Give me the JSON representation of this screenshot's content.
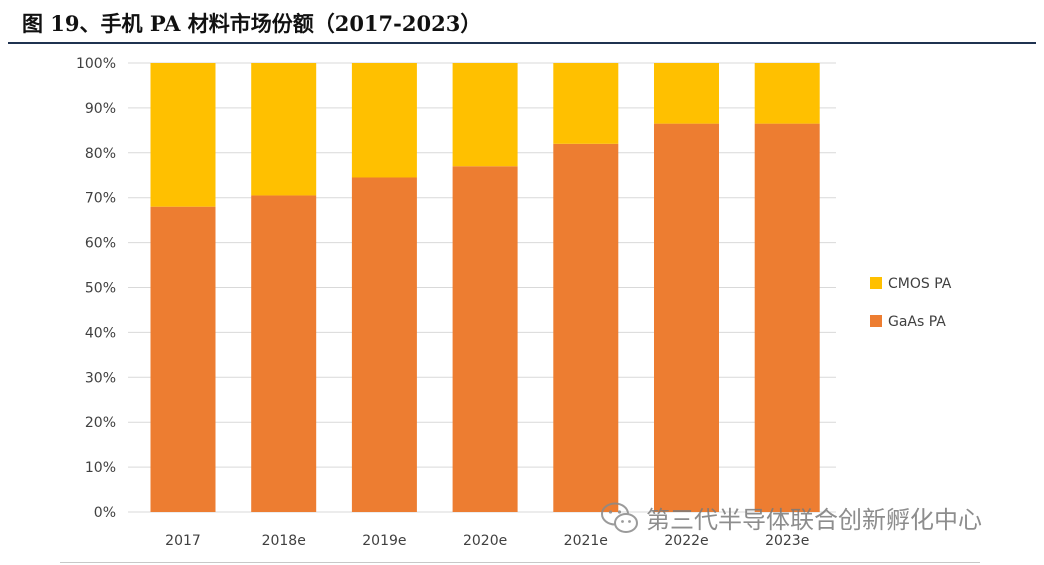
{
  "figure": {
    "title": "图 19、手机 PA 材料市场份额（2017-2023）"
  },
  "watermark": {
    "text": "第三代半导体联合创新孵化中心"
  },
  "chart_data": {
    "type": "bar",
    "stacked": true,
    "title": "",
    "xlabel": "",
    "ylabel": "",
    "categories": [
      "2017",
      "2018e",
      "2019e",
      "2020e",
      "2021e",
      "2022e",
      "2023e"
    ],
    "series": [
      {
        "name": "GaAs PA",
        "color": "#ED7D31",
        "values": [
          68,
          70.5,
          74.5,
          77,
          82,
          86.5,
          86.5
        ]
      },
      {
        "name": "CMOS PA",
        "color": "#FFC000",
        "values": [
          32,
          29.5,
          25.5,
          23,
          18,
          13.5,
          13.5
        ]
      }
    ],
    "ylim": [
      0,
      100
    ],
    "yticks": [
      "0%",
      "10%",
      "20%",
      "30%",
      "40%",
      "50%",
      "60%",
      "70%",
      "80%",
      "90%",
      "100%"
    ],
    "grid": true,
    "legend_position": "right",
    "legend_order": [
      "CMOS PA",
      "GaAs PA"
    ]
  }
}
